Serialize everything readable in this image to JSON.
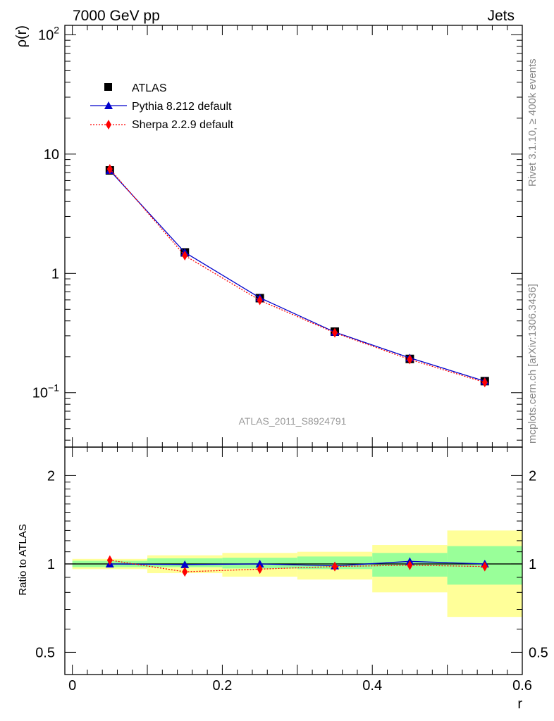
{
  "header": {
    "left_title": "7000 GeV pp",
    "right_title": "Jets"
  },
  "side_labels": {
    "rivet": "Rivet 3.1.10, ≥ 400k events",
    "mcplots": "mcplots.cern.ch [arXiv:1306.3436]"
  },
  "watermark": "ATLAS_2011_S8924791",
  "colors": {
    "data": "#000000",
    "pythia": "#0000cc",
    "sherpa": "#ff0000",
    "band_inner": "#99ff99",
    "band_outer": "#ffff99"
  },
  "chart_data": [
    {
      "name": "main",
      "type": "line",
      "ylabel": "ρ(r)",
      "xlabel": "",
      "yscale": "log",
      "ylim": [
        0.035,
        120
      ],
      "xlim": [
        -0.01,
        0.6
      ],
      "yticks": [
        {
          "value": 100,
          "label": "10",
          "sup": "2"
        },
        {
          "value": 10,
          "label": "10",
          "sup": ""
        },
        {
          "value": 1,
          "label": "1",
          "sup": ""
        },
        {
          "value": 0.1,
          "label": "10",
          "sup": "−1"
        }
      ],
      "x": [
        0.05,
        0.15,
        0.25,
        0.35,
        0.45,
        0.55
      ],
      "series": [
        {
          "name": "ATLAS",
          "marker": "square",
          "values": [
            7.3,
            1.5,
            0.62,
            0.325,
            0.192,
            0.125
          ]
        },
        {
          "name": "Pythia 8.212 default",
          "marker": "triangle",
          "values": [
            7.3,
            1.5,
            0.625,
            0.322,
            0.196,
            0.125
          ]
        },
        {
          "name": "Sherpa 2.2.9 default",
          "marker": "diamond",
          "values": [
            7.5,
            1.41,
            0.595,
            0.318,
            0.19,
            0.122
          ]
        }
      ],
      "legend": {
        "items": [
          {
            "label": "ATLAS"
          },
          {
            "label": "Pythia 8.212 default"
          },
          {
            "label": "Sherpa 2.2.9 default"
          }
        ],
        "placement": "top-left"
      }
    },
    {
      "name": "ratio",
      "type": "line",
      "ylabel": "Ratio to ATLAS",
      "xlabel": "r",
      "yscale": "log",
      "ylim": [
        0.42,
        2.5
      ],
      "xlim": [
        -0.01,
        0.6
      ],
      "yticks": [
        {
          "value": 0.5,
          "label": "0.5"
        },
        {
          "value": 1,
          "label": "1"
        },
        {
          "value": 2,
          "label": "2"
        }
      ],
      "xticks": [
        {
          "value": 0,
          "label": "0"
        },
        {
          "value": 0.2,
          "label": "0.2"
        },
        {
          "value": 0.4,
          "label": "0.4"
        },
        {
          "value": 0.6,
          "label": "0.6"
        }
      ],
      "bins": [
        [
          0.0,
          0.1
        ],
        [
          0.1,
          0.2
        ],
        [
          0.2,
          0.3
        ],
        [
          0.3,
          0.4
        ],
        [
          0.4,
          0.5
        ],
        [
          0.5,
          0.6
        ]
      ],
      "band_inner": [
        [
          0.975,
          1.025
        ],
        [
          0.975,
          1.045
        ],
        [
          0.965,
          1.05
        ],
        [
          0.96,
          1.06
        ],
        [
          0.905,
          1.09
        ],
        [
          0.85,
          1.15
        ]
      ],
      "band_outer": [
        [
          0.96,
          1.04
        ],
        [
          0.93,
          1.07
        ],
        [
          0.905,
          1.09
        ],
        [
          0.885,
          1.1
        ],
        [
          0.8,
          1.16
        ],
        [
          0.66,
          1.3
        ]
      ],
      "x": [
        0.05,
        0.15,
        0.25,
        0.35,
        0.45,
        0.55
      ],
      "series": [
        {
          "name": "Pythia 8.212 default",
          "marker": "triangle",
          "values": [
            1.0,
            0.995,
            1.0,
            0.985,
            1.02,
            1.0
          ]
        },
        {
          "name": "Sherpa 2.2.9 default",
          "marker": "diamond",
          "values": [
            1.03,
            0.94,
            0.96,
            0.98,
            0.99,
            0.98
          ]
        }
      ]
    }
  ]
}
